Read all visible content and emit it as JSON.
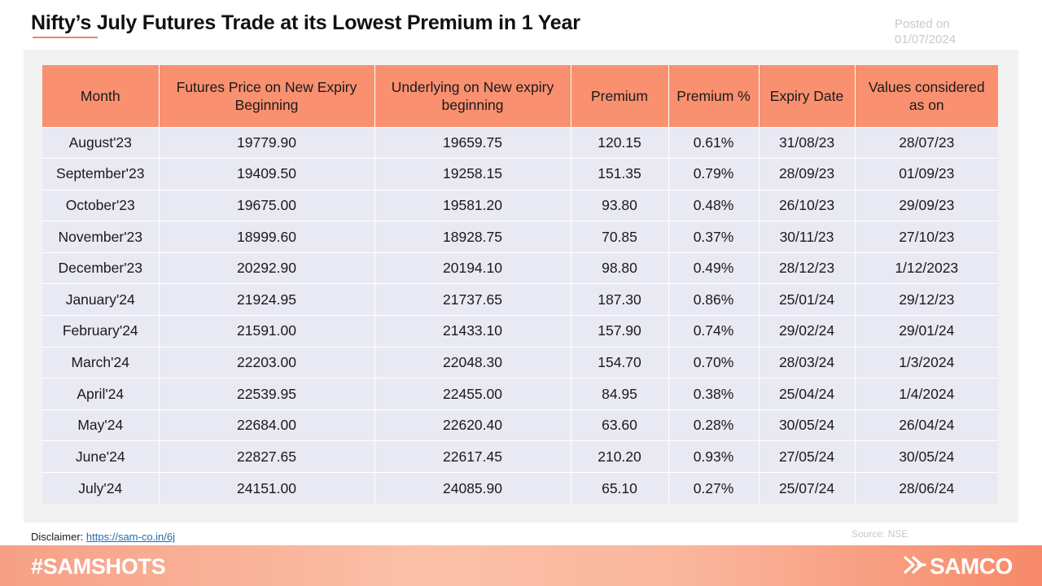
{
  "title": "Nifty’s July Futures Trade at its Lowest Premium in 1 Year",
  "posted": {
    "label": "Posted on",
    "date": "01/07/2024"
  },
  "chart_data": {
    "type": "table",
    "columns": [
      "Month",
      "Futures Price on New Expiry Beginning",
      "Underlying on New expiry beginning",
      "Premium",
      "Premium %",
      "Expiry Date",
      "Values considered as on"
    ],
    "rows": [
      [
        "August'23",
        "19779.90",
        "19659.75",
        "120.15",
        "0.61%",
        "31/08/23",
        "28/07/23"
      ],
      [
        "September'23",
        "19409.50",
        "19258.15",
        "151.35",
        "0.79%",
        "28/09/23",
        "01/09/23"
      ],
      [
        "October'23",
        "19675.00",
        "19581.20",
        "93.80",
        "0.48%",
        "26/10/23",
        "29/09/23"
      ],
      [
        "November'23",
        "18999.60",
        "18928.75",
        "70.85",
        "0.37%",
        "30/11/23",
        "27/10/23"
      ],
      [
        "December'23",
        "20292.90",
        "20194.10",
        "98.80",
        "0.49%",
        "28/12/23",
        "1/12/2023"
      ],
      [
        "January'24",
        "21924.95",
        "21737.65",
        "187.30",
        "0.86%",
        "25/01/24",
        "29/12/23"
      ],
      [
        "February'24",
        "21591.00",
        "21433.10",
        "157.90",
        "0.74%",
        "29/02/24",
        "29/01/24"
      ],
      [
        "March'24",
        "22203.00",
        "22048.30",
        "154.70",
        "0.70%",
        "28/03/24",
        "1/3/2024"
      ],
      [
        "April'24",
        "22539.95",
        "22455.00",
        "84.95",
        "0.38%",
        "25/04/24",
        "1/4/2024"
      ],
      [
        "May'24",
        "22684.00",
        "22620.40",
        "63.60",
        "0.28%",
        "30/05/24",
        "26/04/24"
      ],
      [
        "June'24",
        "22827.65",
        "22617.45",
        "210.20",
        "0.93%",
        "27/05/24",
        "30/05/24"
      ],
      [
        "July'24",
        "24151.00",
        "24085.90",
        "65.10",
        "0.27%",
        "25/07/24",
        "28/06/24"
      ]
    ]
  },
  "disclaimer": {
    "label": "Disclaimer:",
    "link": "https://sam-co.in/6j"
  },
  "source": "Source: NSE",
  "footer": {
    "hashtag": "#SAMSHOTS",
    "brand": "SAMCO"
  },
  "colors": {
    "header_bg": "#f9906f",
    "row_bg": "#e8e9f3",
    "accent": "#f0826a"
  }
}
